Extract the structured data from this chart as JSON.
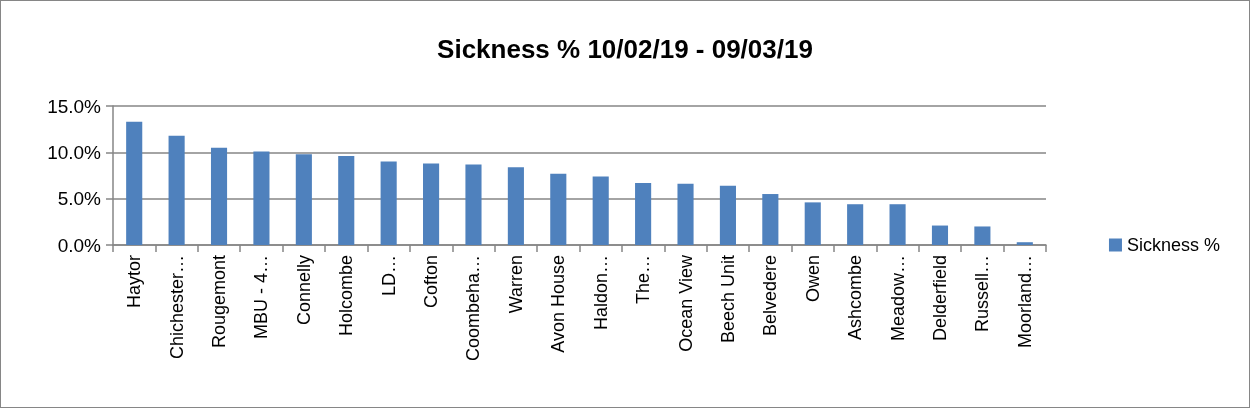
{
  "chart_data": {
    "type": "bar",
    "title": "Sickness % 10/02/19 - 09/03/19",
    "categories": [
      "Haytor",
      "Chichester…",
      "Rougemont",
      "MBU - 4…",
      "Connelly",
      "Holcombe",
      "LD…",
      "Cofton",
      "Coombeha…",
      "Warren",
      "Avon House",
      "Haldon…",
      "The…",
      "Ocean View",
      "Beech Unit",
      "Belvedere",
      "Owen",
      "Ashcombe",
      "Meadow…",
      "Delderfield",
      "Russell…",
      "Moorland…"
    ],
    "series": [
      {
        "name": "Sickness %",
        "color": "#4f81bd",
        "values": [
          13.3,
          11.8,
          10.5,
          10.1,
          9.8,
          9.6,
          9.0,
          8.8,
          8.7,
          8.4,
          7.7,
          7.4,
          6.7,
          6.6,
          6.4,
          5.5,
          4.6,
          4.4,
          4.4,
          2.1,
          2.0,
          0.3
        ]
      }
    ],
    "ylim": [
      0,
      15
    ],
    "yticks": [
      {
        "value": 0,
        "label": "0.0%"
      },
      {
        "value": 5,
        "label": "5.0%"
      },
      {
        "value": 10,
        "label": "10.0%"
      },
      {
        "value": 15,
        "label": "15.0%"
      }
    ],
    "grid": "y",
    "legend": "right"
  }
}
